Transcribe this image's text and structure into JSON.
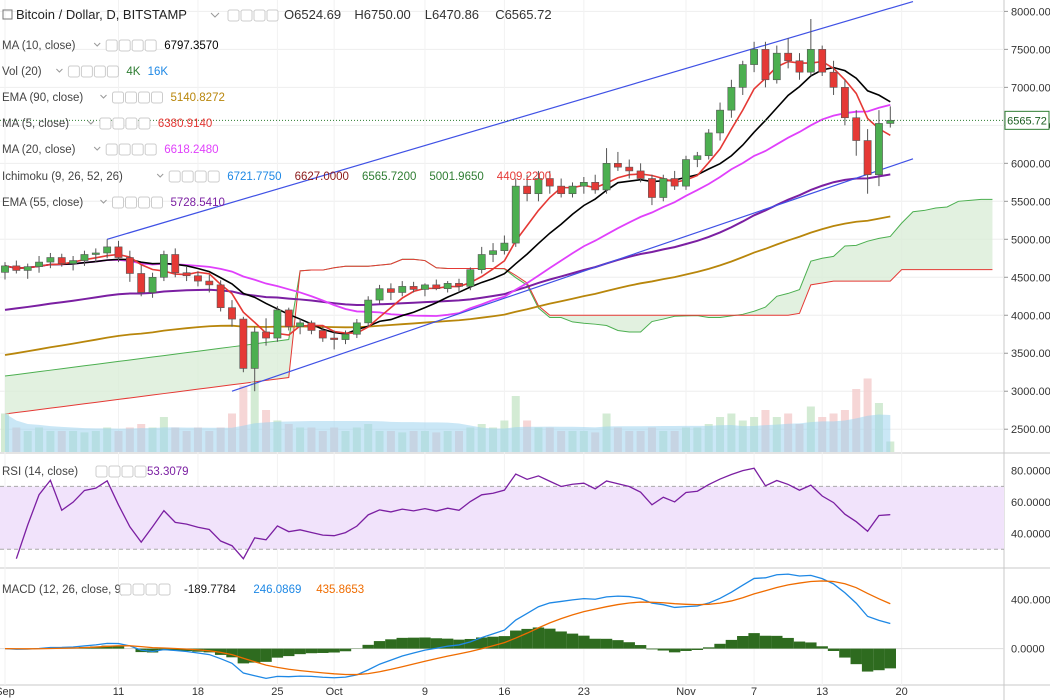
{
  "header": {
    "symbol": "Bitcoin / Dollar, D, BITSTAMP",
    "ohlc": [
      {
        "k": "O",
        "v": "6524.69"
      },
      {
        "k": "H",
        "v": "6750.00"
      },
      {
        "k": "L",
        "v": "6470.86"
      },
      {
        "k": "C",
        "v": "6565.72"
      }
    ]
  },
  "indicators": [
    {
      "label": "MA (10, close)",
      "values": [
        {
          "v": "6797.3570",
          "color": "#000000"
        }
      ]
    },
    {
      "label": "Vol (20)",
      "values": [
        {
          "v": "4K",
          "color": "#2e7d32"
        },
        {
          "v": "16K",
          "color": "#1e88e5"
        }
      ]
    },
    {
      "label": "EMA (90, close)",
      "values": [
        {
          "v": "5140.8272",
          "color": "#b8860b"
        }
      ]
    },
    {
      "label": "MA (5, close)",
      "values": [
        {
          "v": "6380.9140",
          "color": "#e53935"
        }
      ]
    },
    {
      "label": "MA (20, close)",
      "values": [
        {
          "v": "6618.2480",
          "color": "#e040fb"
        }
      ]
    },
    {
      "label": "Ichimoku (9, 26, 52, 26)",
      "values": [
        {
          "v": "6721.7750",
          "color": "#1e88e5"
        },
        {
          "v": "6627.0000",
          "color": "#8b1a1a"
        },
        {
          "v": "6565.7200",
          "color": "#2e7d32"
        },
        {
          "v": "5001.9650",
          "color": "#2e7d32"
        },
        {
          "v": "4409.2200",
          "color": "#e53935"
        }
      ]
    },
    {
      "label": "EMA (55, close)",
      "values": [
        {
          "v": "5728.5410",
          "color": "#7b1fa2"
        }
      ]
    }
  ],
  "rsi_panel": {
    "label": "RSI (14, close)",
    "value": "53.3079"
  },
  "macd_panel": {
    "label": "MACD (12, 26, close, 9)",
    "values": [
      {
        "v": "-189.7784",
        "color": "#1a1a1a"
      },
      {
        "v": "246.0869",
        "color": "#1e88e5"
      },
      {
        "v": "435.8653",
        "color": "#ef6c00"
      }
    ]
  },
  "axes": {
    "price_ticks": [
      "8000.00",
      "7500.00",
      "7000.00",
      "6500.00",
      "6000.00",
      "5500.00",
      "5000.00",
      "4500.00",
      "4000.00",
      "3500.00",
      "3000.00",
      "2500.00"
    ],
    "rsi_ticks": [
      "80.0000",
      "60.0000",
      "40.0000"
    ],
    "macd_ticks": [
      "400.0000",
      "0.0000"
    ],
    "date_ticks": [
      {
        "label": "Sep",
        "i": 0
      },
      {
        "label": "11",
        "i": 10
      },
      {
        "label": "18",
        "i": 17
      },
      {
        "label": "25",
        "i": 24
      },
      {
        "label": "Oct",
        "i": 29
      },
      {
        "label": "9",
        "i": 37
      },
      {
        "label": "16",
        "i": 44
      },
      {
        "label": "23",
        "i": 51
      },
      {
        "label": "Nov",
        "i": 60
      },
      {
        "label": "7",
        "i": 66
      },
      {
        "label": "13",
        "i": 72
      },
      {
        "label": "20",
        "i": 79
      }
    ],
    "last_price_label": "6565.72"
  },
  "colors": {
    "up": "#4caf50",
    "down": "#e53935",
    "ma10": "#000000",
    "ma5": "#e53935",
    "ma20": "#e040fb",
    "ema55": "#7b1fa2",
    "ema90": "#b8860b",
    "cloud_fill": "#d8ecd6",
    "span_a": "#4caf50",
    "span_b": "#e53935",
    "channel": "#3f51e5",
    "rsi": "#7b1fa2",
    "rsi_band": "#f1e3fb",
    "macd": "#1e88e5",
    "signal": "#ef6c00",
    "hist": "#2e6b1f",
    "vol_area": "#9fd3ef"
  },
  "chart_data": {
    "type": "candlestick",
    "start_index_label": "Sep",
    "ylim": [
      2200,
      8150
    ],
    "candles": [
      [
        4565,
        4700,
        4470,
        4650
      ],
      [
        4650,
        4720,
        4550,
        4590
      ],
      [
        4590,
        4680,
        4480,
        4640
      ],
      [
        4640,
        4780,
        4560,
        4700
      ],
      [
        4700,
        4820,
        4620,
        4760
      ],
      [
        4760,
        4810,
        4640,
        4680
      ],
      [
        4680,
        4780,
        4590,
        4720
      ],
      [
        4720,
        4850,
        4650,
        4800
      ],
      [
        4800,
        4880,
        4700,
        4820
      ],
      [
        4820,
        5000,
        4750,
        4900
      ],
      [
        4900,
        4980,
        4700,
        4760
      ],
      [
        4760,
        4850,
        4440,
        4550
      ],
      [
        4550,
        4660,
        4250,
        4300
      ],
      [
        4300,
        4560,
        4230,
        4500
      ],
      [
        4500,
        4850,
        4450,
        4800
      ],
      [
        4800,
        4880,
        4500,
        4560
      ],
      [
        4560,
        4650,
        4450,
        4520
      ],
      [
        4520,
        4580,
        4380,
        4450
      ],
      [
        4450,
        4530,
        4300,
        4400
      ],
      [
        4400,
        4460,
        4050,
        4100
      ],
      [
        4100,
        4200,
        3850,
        3950
      ],
      [
        3950,
        3980,
        3250,
        3300
      ],
      [
        3300,
        3850,
        3000,
        3780
      ],
      [
        3780,
        3960,
        3600,
        3700
      ],
      [
        3700,
        4120,
        3650,
        4070
      ],
      [
        4070,
        4100,
        3800,
        3850
      ],
      [
        3850,
        3950,
        3750,
        3900
      ],
      [
        3900,
        3930,
        3750,
        3800
      ],
      [
        3800,
        3850,
        3650,
        3700
      ],
      [
        3700,
        3800,
        3550,
        3680
      ],
      [
        3680,
        3800,
        3620,
        3750
      ],
      [
        3750,
        3950,
        3700,
        3900
      ],
      [
        3900,
        4250,
        3850,
        4200
      ],
      [
        4200,
        4400,
        4150,
        4350
      ],
      [
        4350,
        4420,
        4200,
        4300
      ],
      [
        4300,
        4450,
        4250,
        4380
      ],
      [
        4380,
        4440,
        4300,
        4340
      ],
      [
        4340,
        4420,
        4250,
        4400
      ],
      [
        4400,
        4470,
        4330,
        4350
      ],
      [
        4350,
        4450,
        4300,
        4420
      ],
      [
        4420,
        4480,
        4300,
        4380
      ],
      [
        4380,
        4630,
        4330,
        4600
      ],
      [
        4600,
        4900,
        4550,
        4800
      ],
      [
        4800,
        4950,
        4700,
        4850
      ],
      [
        4850,
        5050,
        4800,
        4950
      ],
      [
        4950,
        5800,
        4900,
        5700
      ],
      [
        5700,
        5850,
        5500,
        5600
      ],
      [
        5600,
        5900,
        5500,
        5800
      ],
      [
        5800,
        5900,
        5600,
        5700
      ],
      [
        5700,
        5800,
        5550,
        5600
      ],
      [
        5600,
        5750,
        5550,
        5700
      ],
      [
        5700,
        5820,
        5600,
        5750
      ],
      [
        5750,
        5850,
        5600,
        5650
      ],
      [
        5650,
        6200,
        5600,
        6000
      ],
      [
        6000,
        6150,
        5900,
        5950
      ],
      [
        5950,
        6050,
        5800,
        5900
      ],
      [
        5900,
        6000,
        5750,
        5800
      ],
      [
        5800,
        5850,
        5450,
        5550
      ],
      [
        5550,
        5850,
        5500,
        5800
      ],
      [
        5800,
        5900,
        5650,
        5700
      ],
      [
        5700,
        6100,
        5650,
        6050
      ],
      [
        6050,
        6150,
        5950,
        6100
      ],
      [
        6100,
        6450,
        6050,
        6400
      ],
      [
        6400,
        6800,
        6300,
        6700
      ],
      [
        6700,
        7100,
        6600,
        7000
      ],
      [
        7000,
        7350,
        6900,
        7300
      ],
      [
        7300,
        7600,
        7200,
        7500
      ],
      [
        7500,
        7600,
        7000,
        7100
      ],
      [
        7100,
        7550,
        7050,
        7450
      ],
      [
        7450,
        7650,
        7250,
        7350
      ],
      [
        7350,
        7450,
        7100,
        7200
      ],
      [
        7200,
        7900,
        7150,
        7500
      ],
      [
        7500,
        7550,
        7150,
        7200
      ],
      [
        7200,
        7350,
        6900,
        7000
      ],
      [
        7000,
        7100,
        6500,
        6600
      ],
      [
        6600,
        6700,
        6100,
        6300
      ],
      [
        6300,
        6450,
        5600,
        5850
      ],
      [
        5850,
        6700,
        5700,
        6525
      ],
      [
        6525,
        6750,
        6471,
        6566
      ]
    ],
    "volume": [
      0.55,
      0.35,
      0.3,
      0.35,
      0.3,
      0.3,
      0.3,
      0.28,
      0.3,
      0.35,
      0.3,
      0.35,
      0.4,
      0.35,
      0.5,
      0.35,
      0.3,
      0.35,
      0.3,
      0.35,
      0.55,
      0.95,
      1.0,
      0.6,
      0.45,
      0.4,
      0.35,
      0.35,
      0.3,
      0.35,
      0.3,
      0.35,
      0.4,
      0.3,
      0.3,
      0.28,
      0.3,
      0.3,
      0.28,
      0.3,
      0.3,
      0.35,
      0.4,
      0.35,
      0.45,
      0.8,
      0.45,
      0.35,
      0.35,
      0.3,
      0.3,
      0.3,
      0.28,
      0.55,
      0.35,
      0.3,
      0.3,
      0.35,
      0.3,
      0.3,
      0.35,
      0.35,
      0.4,
      0.5,
      0.55,
      0.45,
      0.5,
      0.6,
      0.5,
      0.55,
      0.4,
      0.65,
      0.5,
      0.55,
      0.6,
      0.9,
      1.05,
      0.7,
      0.15
    ],
    "volume_scale_max": "16K",
    "rsi": {
      "ylim": [
        20,
        90
      ],
      "band": [
        30,
        70
      ],
      "ref": [
        80,
        60,
        40
      ]
    },
    "macd": {
      "ylim": [
        -280,
        640
      ]
    },
    "channel": {
      "upper": [
        {
          "i": 9,
          "p": 5000
        },
        {
          "i": 80,
          "p": 8130
        }
      ],
      "lower": [
        {
          "i": 20,
          "p": 3000
        },
        {
          "i": 80,
          "p": 6060
        }
      ]
    }
  }
}
